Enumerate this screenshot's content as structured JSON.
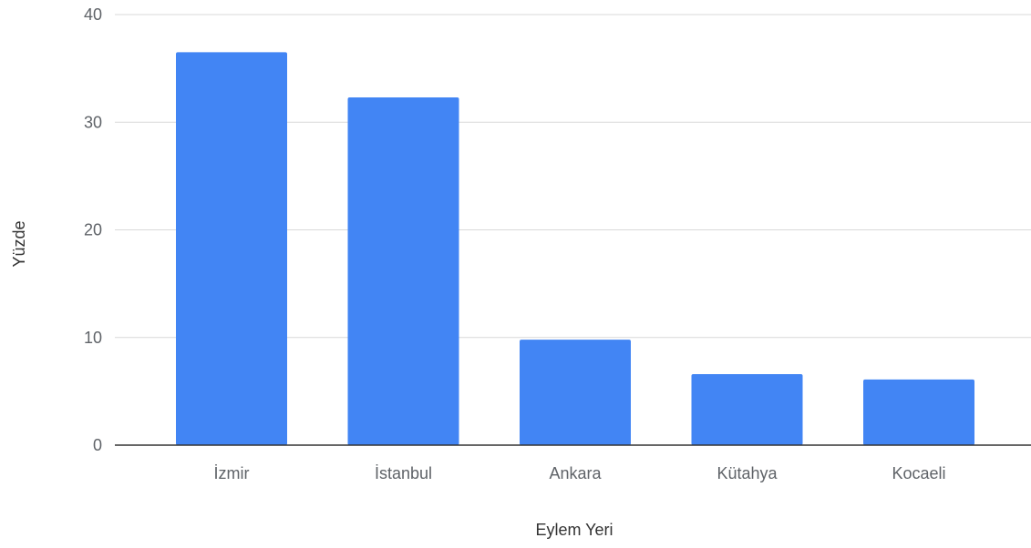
{
  "chart_data": {
    "type": "bar",
    "title": "",
    "xlabel": "Eylem Yeri",
    "ylabel": "Yüzde",
    "categories": [
      "İzmir",
      "İstanbul",
      "Ankara",
      "Kütahya",
      "Kocaeli"
    ],
    "values": [
      36.5,
      32.3,
      9.8,
      6.6,
      6.1
    ],
    "ylim": [
      0,
      40
    ],
    "yticks": [
      "0",
      "10",
      "20",
      "30",
      "40"
    ],
    "grid": true,
    "legend": "none",
    "bar_color": "#4285f4",
    "grid_color": "#d9d9d9",
    "baseline_color": "#333333"
  }
}
